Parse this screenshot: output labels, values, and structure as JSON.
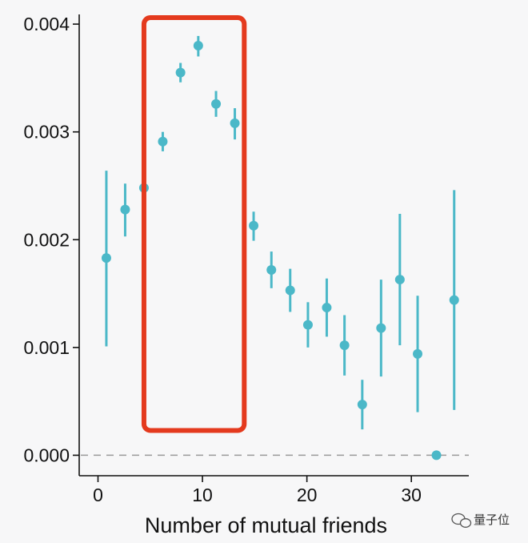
{
  "chart_data": {
    "type": "scatter",
    "title": "",
    "xlabel": "Number of mutual friends",
    "ylabel": "",
    "xlim": [
      -1.8,
      35.5
    ],
    "ylim": [
      -0.00019,
      0.00409
    ],
    "x_ticks": [
      0,
      10,
      20,
      30
    ],
    "x_tick_labels": [
      "0",
      "10",
      "20",
      "30"
    ],
    "y_ticks": [
      0.0,
      0.001,
      0.002,
      0.003,
      0.004
    ],
    "y_tick_labels": [
      "0.000",
      "0.001",
      "0.002",
      "0.003",
      "0.004"
    ],
    "reference_line": {
      "y": 0,
      "style": "dashed"
    },
    "grid": false,
    "point_color": "#4bb8c8",
    "highlight_color": "#e43a1e",
    "highlight_region": {
      "x": [
        4.4,
        14.0
      ],
      "y": [
        0.00023,
        0.00406
      ]
    },
    "points": [
      {
        "x": 0.8,
        "y": 0.00183,
        "lo": 0.00101,
        "hi": 0.00264
      },
      {
        "x": 2.6,
        "y": 0.00228,
        "lo": 0.00203,
        "hi": 0.00252
      },
      {
        "x": 4.4,
        "y": 0.00248,
        "lo": 0.00246,
        "hi": 0.0025
      },
      {
        "x": 6.2,
        "y": 0.00291,
        "lo": 0.00282,
        "hi": 0.003
      },
      {
        "x": 7.9,
        "y": 0.00355,
        "lo": 0.00346,
        "hi": 0.00364
      },
      {
        "x": 9.6,
        "y": 0.0038,
        "lo": 0.0037,
        "hi": 0.00389
      },
      {
        "x": 11.3,
        "y": 0.00326,
        "lo": 0.00314,
        "hi": 0.00338
      },
      {
        "x": 13.1,
        "y": 0.00308,
        "lo": 0.00293,
        "hi": 0.00322
      },
      {
        "x": 14.9,
        "y": 0.00213,
        "lo": 0.00199,
        "hi": 0.00226
      },
      {
        "x": 16.6,
        "y": 0.00172,
        "lo": 0.00155,
        "hi": 0.00189
      },
      {
        "x": 18.4,
        "y": 0.00153,
        "lo": 0.00133,
        "hi": 0.00173
      },
      {
        "x": 20.1,
        "y": 0.00121,
        "lo": 0.001,
        "hi": 0.00142
      },
      {
        "x": 21.9,
        "y": 0.00137,
        "lo": 0.0011,
        "hi": 0.00164
      },
      {
        "x": 23.6,
        "y": 0.00102,
        "lo": 0.00074,
        "hi": 0.0013
      },
      {
        "x": 25.3,
        "y": 0.00047,
        "lo": 0.00024,
        "hi": 0.0007
      },
      {
        "x": 27.1,
        "y": 0.00118,
        "lo": 0.00073,
        "hi": 0.00163
      },
      {
        "x": 28.9,
        "y": 0.00163,
        "lo": 0.00102,
        "hi": 0.00224
      },
      {
        "x": 30.6,
        "y": 0.00094,
        "lo": 0.0004,
        "hi": 0.00148
      },
      {
        "x": 32.4,
        "y": 0.0,
        "lo": 0.0,
        "hi": 0.0
      },
      {
        "x": 34.1,
        "y": 0.00144,
        "lo": 0.00042,
        "hi": 0.00246
      }
    ]
  },
  "watermark": {
    "text": "量子位",
    "icon": "wechat-icon"
  }
}
